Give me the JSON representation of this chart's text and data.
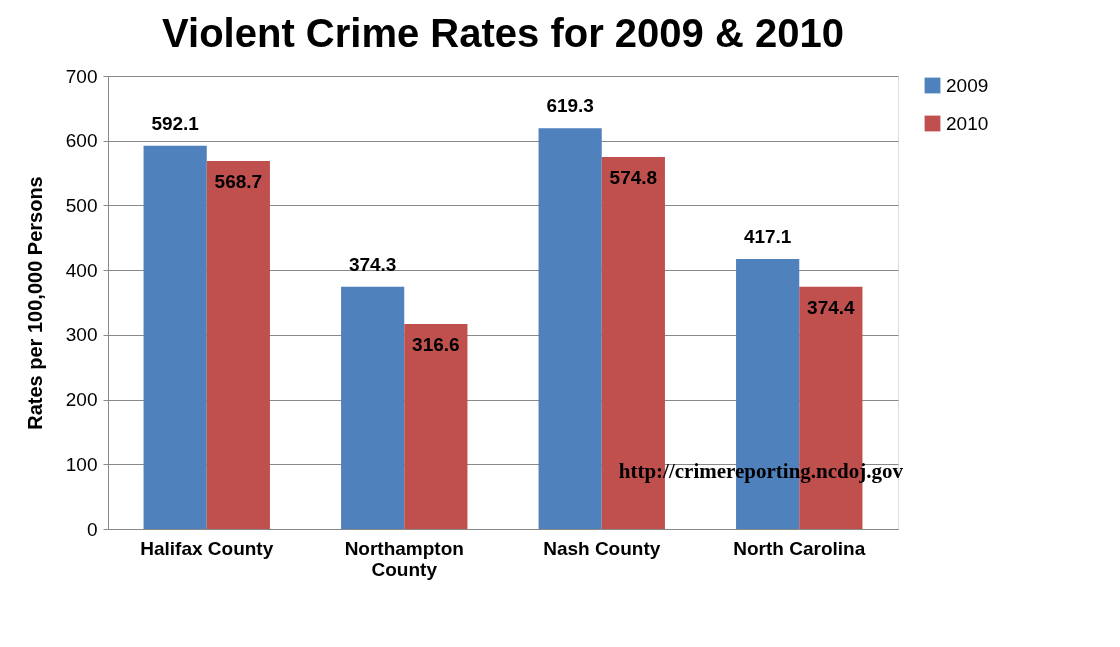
{
  "chart_data": {
    "type": "bar",
    "title": "Violent Crime Rates for 2009 & 2010",
    "ylabel": "Rates per 100,000 Persons",
    "categories": [
      "Halifax County",
      "Northampton County",
      "Nash County",
      "North Carolina"
    ],
    "series": [
      {
        "name": "2009",
        "color": "#4f81bd",
        "values": [
          592.1,
          374.3,
          619.3,
          417.1
        ]
      },
      {
        "name": "2010",
        "color": "#c0504d",
        "values": [
          568.7,
          316.6,
          574.8,
          374.4
        ]
      }
    ],
    "ylim": [
      0,
      700
    ],
    "yticks": [
      0,
      100,
      200,
      300,
      400,
      500,
      600,
      700
    ],
    "grid": "y",
    "legend": "right",
    "data_labels": true,
    "annotations": [
      "http://crimereporting.ncdoj.gov"
    ]
  }
}
